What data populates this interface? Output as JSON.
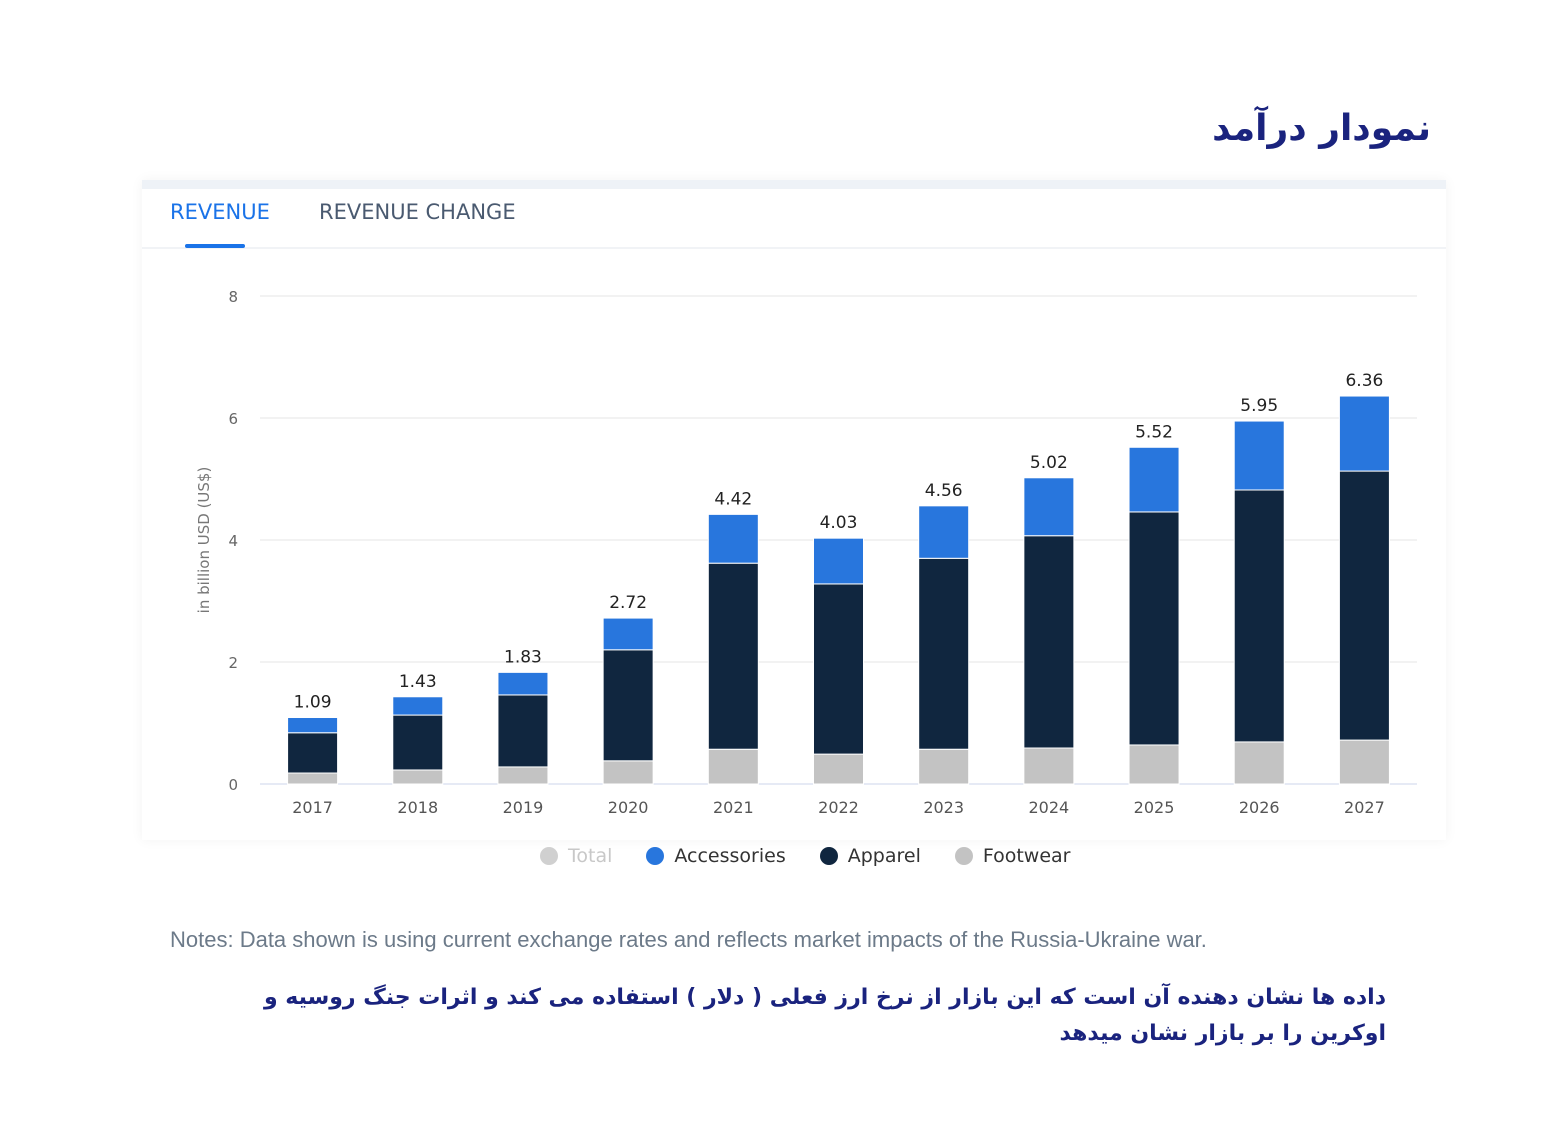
{
  "title_fa": "نمودار درآمد",
  "tabs": [
    {
      "label": "REVENUE",
      "active": true
    },
    {
      "label": "REVENUE CHANGE",
      "active": false
    }
  ],
  "notes": "Notes: Data shown is using current exchange rates and reflects market impacts of the Russia-Ukraine war.",
  "note_fa": "داده ها نشان دهنده آن است که این بازار از نرخ ارز فعلی ( دلار ) استفاده می کند و اثرات جنگ روسیه و اوکرین را بر بازار نشان میدهد",
  "colors": {
    "accessories": "#2876dd",
    "apparel": "#10263f",
    "footwear": "#c3c3c3",
    "total": "#cccccc"
  },
  "chart_data": {
    "type": "bar",
    "stacked": true,
    "categories": [
      "2017",
      "2018",
      "2019",
      "2020",
      "2021",
      "2022",
      "2023",
      "2024",
      "2025",
      "2026",
      "2027"
    ],
    "series": [
      {
        "name": "Footwear",
        "values": [
          0.18,
          0.23,
          0.28,
          0.38,
          0.57,
          0.49,
          0.57,
          0.59,
          0.64,
          0.69,
          0.72
        ]
      },
      {
        "name": "Apparel",
        "values": [
          0.66,
          0.9,
          1.18,
          1.82,
          3.05,
          2.79,
          3.13,
          3.48,
          3.82,
          4.13,
          4.41
        ]
      },
      {
        "name": "Accessories",
        "values": [
          0.25,
          0.3,
          0.37,
          0.52,
          0.8,
          0.75,
          0.86,
          0.95,
          1.06,
          1.13,
          1.23
        ]
      }
    ],
    "totals": [
      "1.09",
      "1.43",
      "1.83",
      "2.72",
      "4.42",
      "4.03",
      "4.56",
      "5.02",
      "5.52",
      "5.95",
      "6.36"
    ],
    "legend": [
      "Total",
      "Accessories",
      "Apparel",
      "Footwear"
    ],
    "ylabel": "in billion USD (US$)",
    "yticks": [
      "0",
      "2",
      "4",
      "6",
      "8"
    ],
    "ylim": [
      0,
      8
    ],
    "grid": true,
    "legend_position": "bottom"
  }
}
